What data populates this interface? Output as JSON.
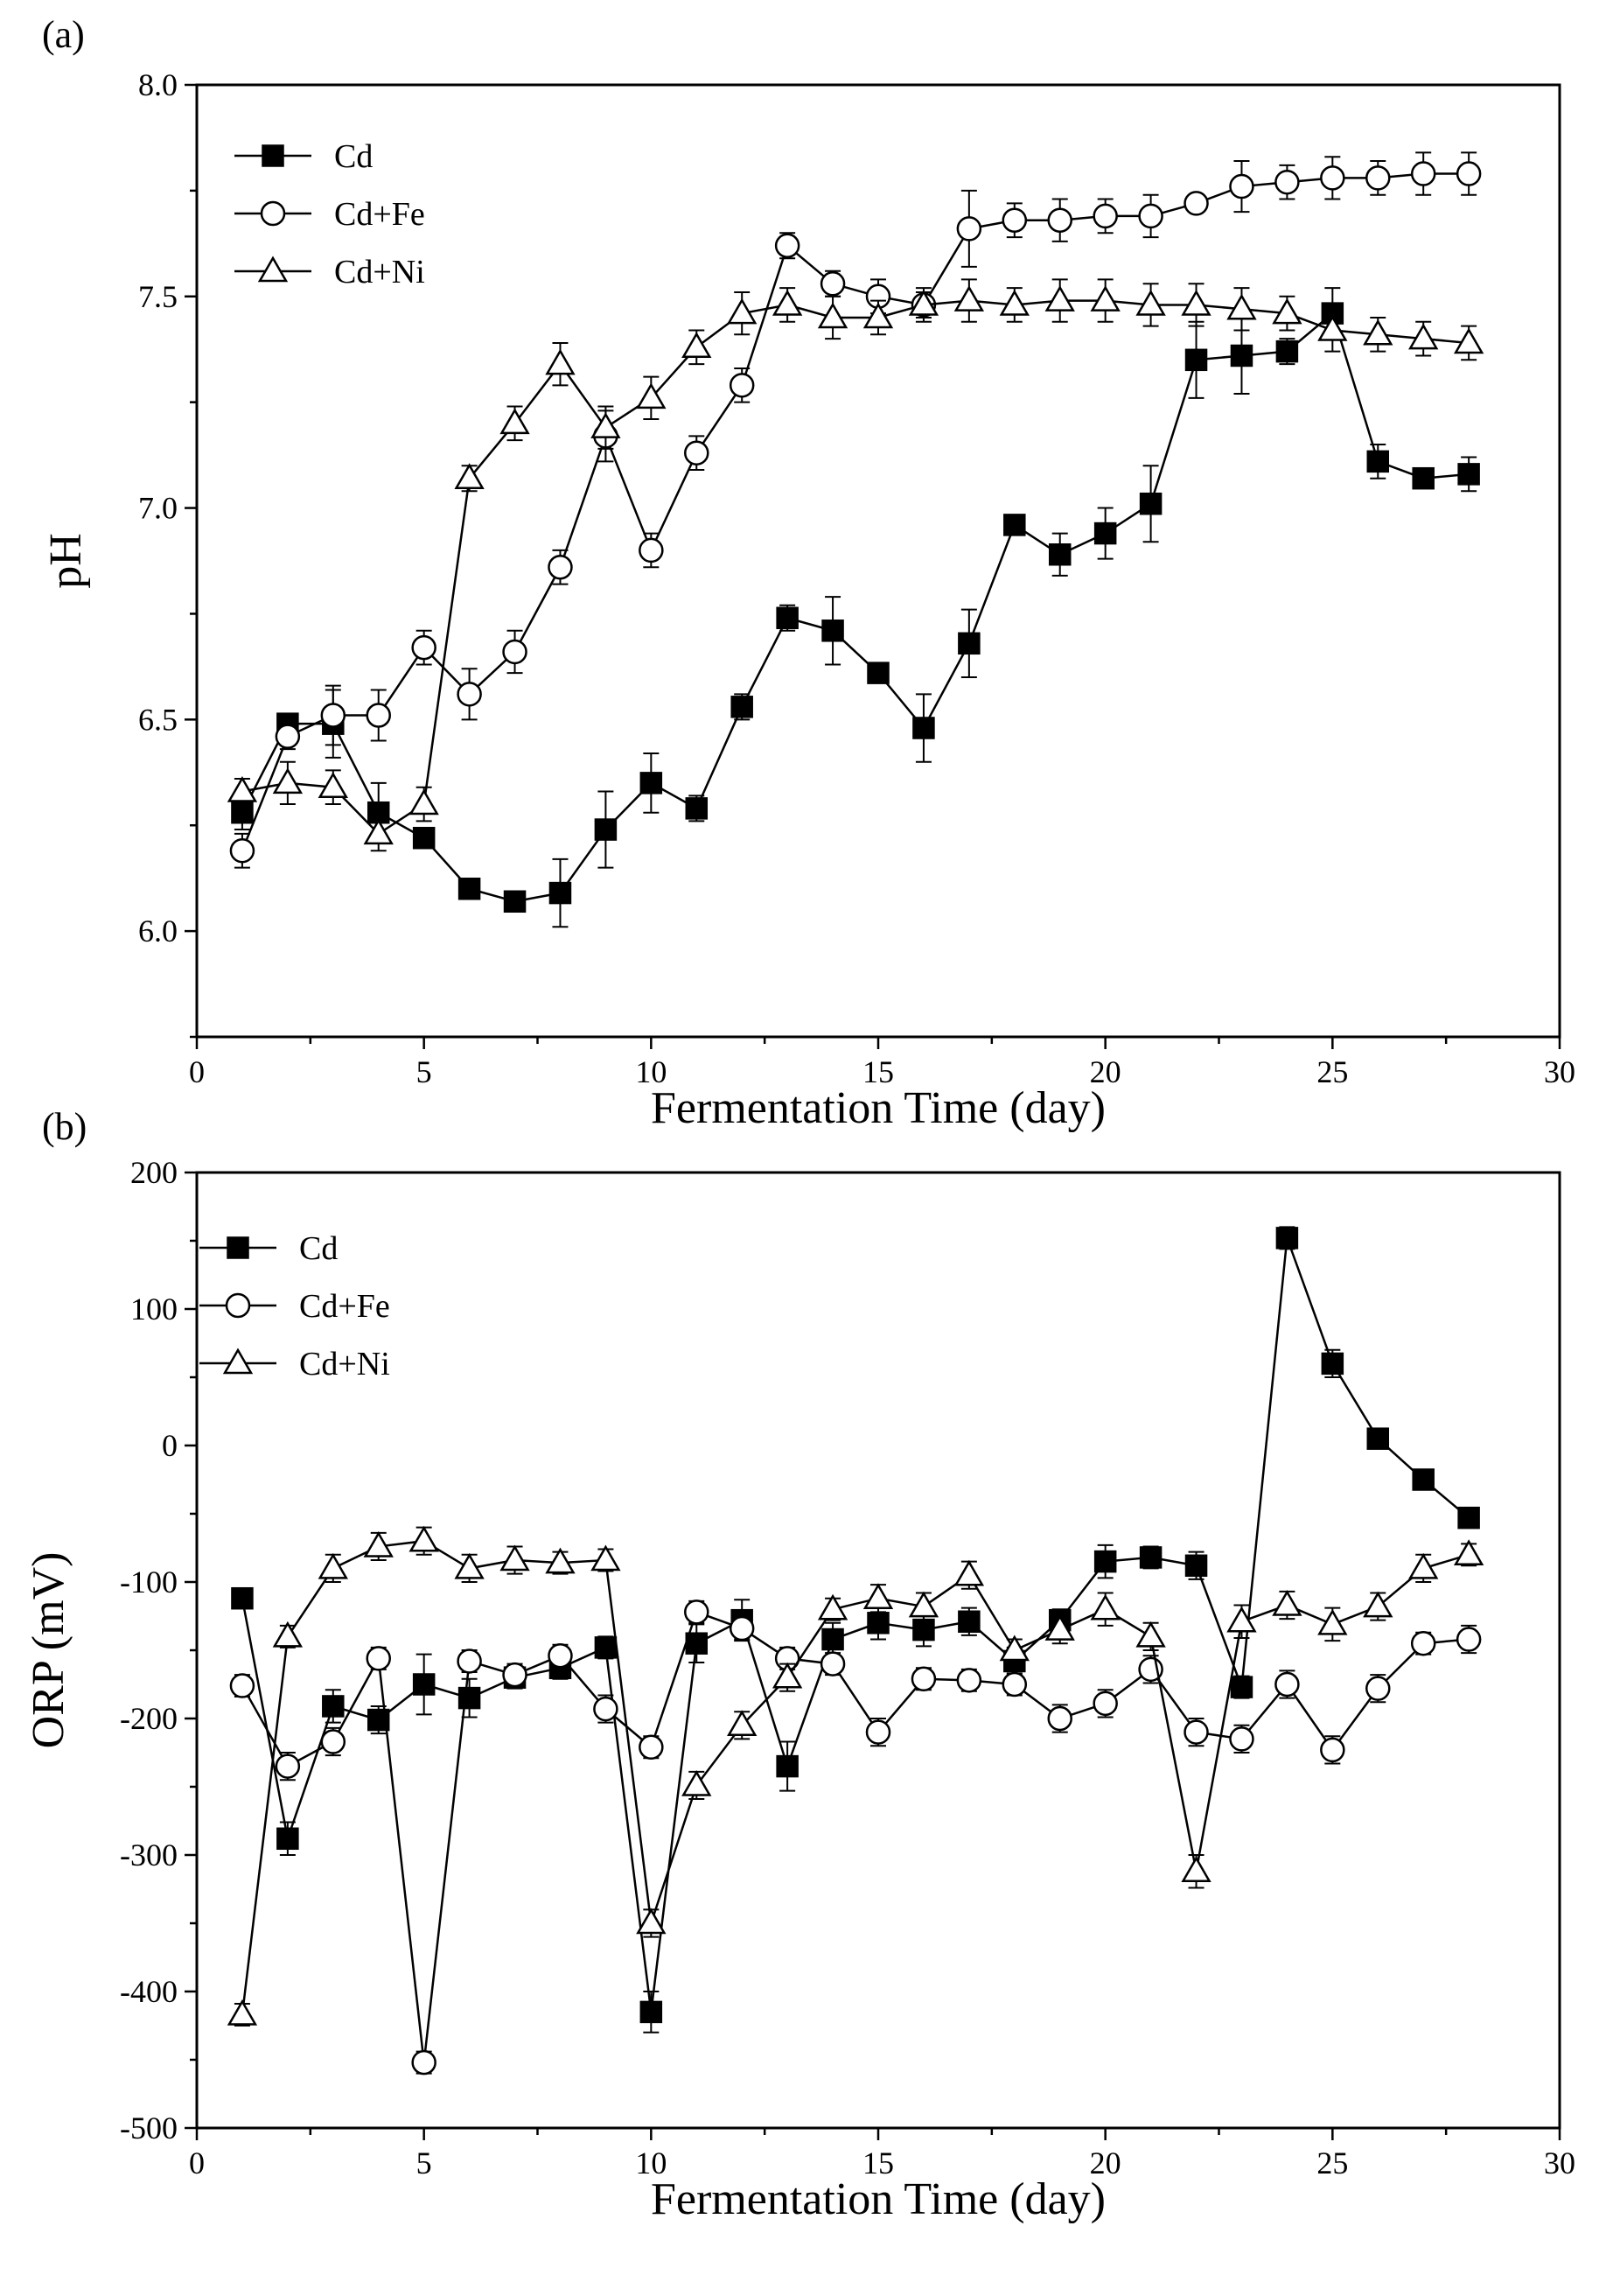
{
  "chart_data": [
    {
      "type": "line",
      "panel_label": "(a)",
      "xlabel": "Fermentation Time (day)",
      "ylabel": "pH",
      "xlim": [
        0,
        30
      ],
      "ylim": [
        5.75,
        8.0
      ],
      "xticks": [
        0,
        5,
        10,
        15,
        20,
        25,
        30
      ],
      "xtick_labels": [
        "0",
        "5",
        "10",
        "15",
        "20",
        "25",
        "30"
      ],
      "yticks": [
        6.0,
        6.5,
        7.0,
        7.5,
        8.0
      ],
      "ytick_labels": [
        "6.0",
        "6.5",
        "7.0",
        "7.5",
        "8.0"
      ],
      "grid": false,
      "legend_position": "top-left",
      "x": [
        1,
        2,
        3,
        4,
        5,
        6,
        7,
        8,
        9,
        10,
        11,
        12,
        13,
        14,
        15,
        16,
        17,
        18,
        19,
        20,
        21,
        22,
        23,
        24,
        25,
        26,
        27,
        28
      ],
      "series": [
        {
          "name": "Cd",
          "marker": "filled-square",
          "values": [
            6.28,
            6.49,
            6.49,
            6.28,
            6.22,
            6.1,
            6.07,
            6.09,
            6.24,
            6.35,
            6.29,
            6.53,
            6.74,
            6.71,
            6.61,
            6.48,
            6.68,
            6.96,
            6.89,
            6.94,
            7.01,
            7.35,
            7.36,
            7.37,
            7.46,
            7.11,
            7.07,
            7.08
          ],
          "errors": [
            0.04,
            0.02,
            0.08,
            0.07,
            0.02,
            0.02,
            0.02,
            0.08,
            0.09,
            0.07,
            0.03,
            0.03,
            0.03,
            0.08,
            0.02,
            0.08,
            0.08,
            0.02,
            0.05,
            0.06,
            0.09,
            0.09,
            0.09,
            0.03,
            0.06,
            0.04,
            0.02,
            0.04
          ]
        },
        {
          "name": "Cd+Fe",
          "marker": "open-circle",
          "values": [
            6.19,
            6.46,
            6.51,
            6.51,
            6.67,
            6.56,
            6.66,
            6.86,
            7.17,
            6.9,
            7.13,
            7.29,
            7.62,
            7.53,
            7.5,
            7.48,
            7.66,
            7.68,
            7.68,
            7.69,
            7.69,
            7.72,
            7.76,
            7.77,
            7.78,
            7.78,
            7.79,
            7.79
          ],
          "errors": [
            0.04,
            0.03,
            0.07,
            0.06,
            0.04,
            0.06,
            0.05,
            0.04,
            0.06,
            0.04,
            0.04,
            0.04,
            0.03,
            0.03,
            0.04,
            0.03,
            0.09,
            0.04,
            0.05,
            0.04,
            0.05,
            0.02,
            0.06,
            0.04,
            0.05,
            0.04,
            0.05,
            0.05
          ]
        },
        {
          "name": "Cd+Ni",
          "marker": "open-triangle",
          "values": [
            6.33,
            6.35,
            6.34,
            6.23,
            6.3,
            7.07,
            7.2,
            7.34,
            7.19,
            7.26,
            7.38,
            7.46,
            7.48,
            7.45,
            7.45,
            7.48,
            7.49,
            7.48,
            7.49,
            7.49,
            7.48,
            7.48,
            7.47,
            7.46,
            7.42,
            7.41,
            7.4,
            7.39
          ],
          "errors": [
            0.03,
            0.05,
            0.04,
            0.04,
            0.04,
            0.03,
            0.04,
            0.05,
            0.05,
            0.05,
            0.04,
            0.05,
            0.04,
            0.05,
            0.04,
            0.04,
            0.05,
            0.04,
            0.05,
            0.05,
            0.05,
            0.05,
            0.05,
            0.04,
            0.05,
            0.04,
            0.04,
            0.04
          ]
        }
      ]
    },
    {
      "type": "line",
      "panel_label": "(b)",
      "xlabel": "Fermentation Time (day)",
      "ylabel": "ORP (mV)",
      "xlim": [
        0,
        30
      ],
      "ylim": [
        -500,
        200
      ],
      "xticks": [
        0,
        5,
        10,
        15,
        20,
        25,
        30
      ],
      "xtick_labels": [
        "0",
        "5",
        "10",
        "15",
        "20",
        "25",
        "30"
      ],
      "yticks": [
        -500,
        -400,
        -300,
        -200,
        -100,
        0,
        100,
        200
      ],
      "ytick_labels": [
        "-500",
        "-400",
        "-300",
        "-200",
        "-100",
        "0",
        "100",
        "200"
      ],
      "grid": false,
      "legend_position": "top-left",
      "x": [
        1,
        2,
        3,
        4,
        5,
        6,
        7,
        8,
        9,
        10,
        11,
        12,
        13,
        14,
        15,
        16,
        17,
        18,
        19,
        20,
        21,
        22,
        23,
        24,
        25,
        26,
        27,
        28
      ],
      "series": [
        {
          "name": "Cd",
          "marker": "filled-square",
          "values": [
            -112,
            -288,
            -191,
            -201,
            -175,
            -185,
            -170,
            -163,
            -148,
            -415,
            -145,
            -128,
            -235,
            -142,
            -130,
            -135,
            -129,
            -158,
            -128,
            -85,
            -82,
            -88,
            -177,
            152,
            60,
            5,
            -25,
            -53
          ],
          "errors": [
            5,
            12,
            12,
            10,
            22,
            14,
            8,
            8,
            8,
            15,
            14,
            15,
            18,
            12,
            12,
            12,
            10,
            10,
            8,
            12,
            8,
            10,
            8,
            8,
            10,
            6,
            6,
            6
          ]
        },
        {
          "name": "Cd+Fe",
          "marker": "open-circle",
          "values": [
            -176,
            -235,
            -217,
            -156,
            -452,
            -158,
            -168,
            -154,
            -193,
            -221,
            -122,
            -134,
            -156,
            -160,
            -210,
            -171,
            -172,
            -175,
            -200,
            -189,
            -164,
            -210,
            -215,
            -175,
            -223,
            -178,
            -145,
            -142
          ],
          "errors": [
            8,
            10,
            10,
            8,
            8,
            8,
            8,
            8,
            10,
            8,
            8,
            8,
            8,
            8,
            10,
            8,
            8,
            8,
            10,
            10,
            10,
            10,
            10,
            10,
            10,
            10,
            8,
            10
          ]
        },
        {
          "name": "Cd+Ni",
          "marker": "open-triangle",
          "values": [
            -417,
            -140,
            -90,
            -74,
            -70,
            -90,
            -84,
            -86,
            -84,
            -350,
            -249,
            -205,
            -170,
            -120,
            -112,
            -118,
            -95,
            -150,
            -135,
            -120,
            -140,
            -312,
            -129,
            -117,
            -131,
            -118,
            -90,
            -80
          ],
          "errors": [
            8,
            8,
            10,
            10,
            10,
            10,
            10,
            8,
            8,
            10,
            10,
            10,
            10,
            8,
            10,
            10,
            10,
            8,
            10,
            12,
            10,
            12,
            12,
            10,
            12,
            10,
            10,
            8
          ]
        }
      ]
    }
  ]
}
